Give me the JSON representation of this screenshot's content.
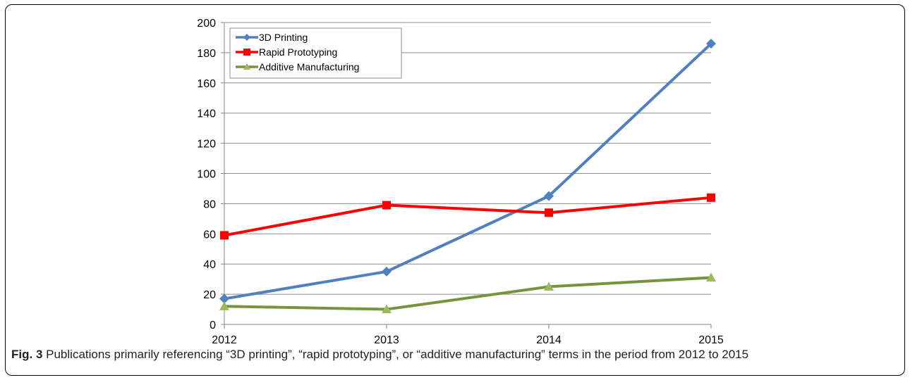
{
  "chart_data": {
    "type": "line",
    "x": [
      "2012",
      "2013",
      "2014",
      "2015"
    ],
    "ylim": [
      0,
      200
    ],
    "yticks": [
      0,
      20,
      40,
      60,
      80,
      100,
      120,
      140,
      160,
      180,
      200
    ],
    "grid": true,
    "legend_position": "top-left",
    "series": [
      {
        "name": "3D Printing",
        "color": "#4f81bd",
        "marker": "diamond",
        "values": [
          17,
          35,
          85,
          186
        ]
      },
      {
        "name": "Rapid Prototyping",
        "color": "#ff0000",
        "marker": "square",
        "values": [
          59,
          79,
          74,
          84
        ]
      },
      {
        "name": "Additive Manufacturing",
        "color": "#77933c",
        "marker_color": "#9bbb59",
        "marker": "triangle",
        "values": [
          12,
          10,
          25,
          31
        ]
      }
    ]
  },
  "caption": {
    "label": "Fig. 3",
    "text": "Publications primarily referencing “3D printing”, “rapid prototyping”, or “additive manufacturing” terms in the period from 2012 to 2015"
  }
}
